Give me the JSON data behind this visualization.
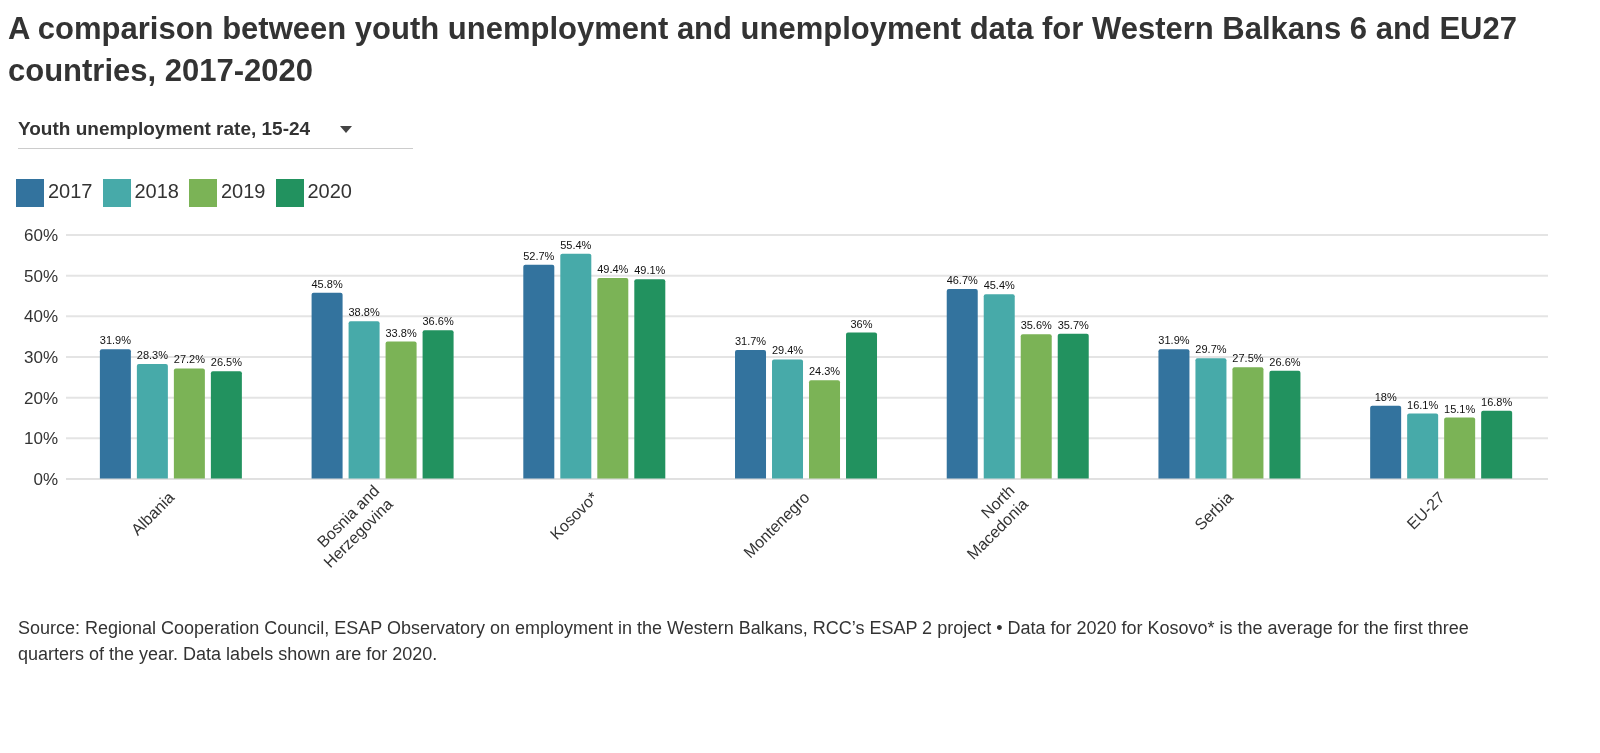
{
  "chart_data": {
    "type": "bar",
    "title": "A comparison between youth unemployment and unemployment data for Western Balkans 6 and EU27 countries, 2017-2020",
    "subtitle": "Youth unemployment rate, 15-24",
    "categories": [
      "Albania",
      "Bosnia and Herzegovina",
      "Kosovo*",
      "Montenegro",
      "North Macedonia",
      "Serbia",
      "EU-27"
    ],
    "series": [
      {
        "name": "2017",
        "color": "#33739e",
        "values": [
          31.9,
          45.8,
          52.7,
          31.7,
          46.7,
          31.9,
          18
        ],
        "value_labels": [
          "31.9%",
          "45.8%",
          "52.7%",
          "31.7%",
          "46.7%",
          "31.9%",
          "18%"
        ]
      },
      {
        "name": "2018",
        "color": "#47aaa9",
        "values": [
          28.3,
          38.8,
          55.4,
          29.4,
          45.4,
          29.7,
          16.1
        ],
        "value_labels": [
          "28.3%",
          "38.8%",
          "55.4%",
          "29.4%",
          "45.4%",
          "29.7%",
          "16.1%"
        ]
      },
      {
        "name": "2019",
        "color": "#7bb356",
        "values": [
          27.2,
          33.8,
          49.4,
          24.3,
          35.6,
          27.5,
          15.1
        ],
        "value_labels": [
          "27.2%",
          "33.8%",
          "49.4%",
          "24.3%",
          "35.6%",
          "27.5%",
          "15.1%"
        ]
      },
      {
        "name": "2020",
        "color": "#22925f",
        "values": [
          26.5,
          36.6,
          49.1,
          36,
          35.7,
          26.6,
          16.8
        ],
        "value_labels": [
          "26.5%",
          "36.6%",
          "49.1%",
          "36%",
          "35.7%",
          "26.6%",
          "16.8%"
        ]
      }
    ],
    "ylim": [
      0,
      60
    ],
    "yticks": [
      {
        "value": 0,
        "label": "0%"
      },
      {
        "value": 10,
        "label": "10%"
      },
      {
        "value": 20,
        "label": "20%"
      },
      {
        "value": 30,
        "label": "30%"
      },
      {
        "value": 40,
        "label": "40%"
      },
      {
        "value": 50,
        "label": "50%"
      },
      {
        "value": 60,
        "label": "60%"
      }
    ],
    "grid": "y",
    "legend": "top left",
    "annotations": [
      "Source: Regional Cooperation Council, ESAP Observatory on employment in the Western Balkans, RCC’s ESAP 2 project • Data for 2020 for Kosovo* is the average for the first three quarters of the year. Data labels shown are for 2020."
    ]
  }
}
